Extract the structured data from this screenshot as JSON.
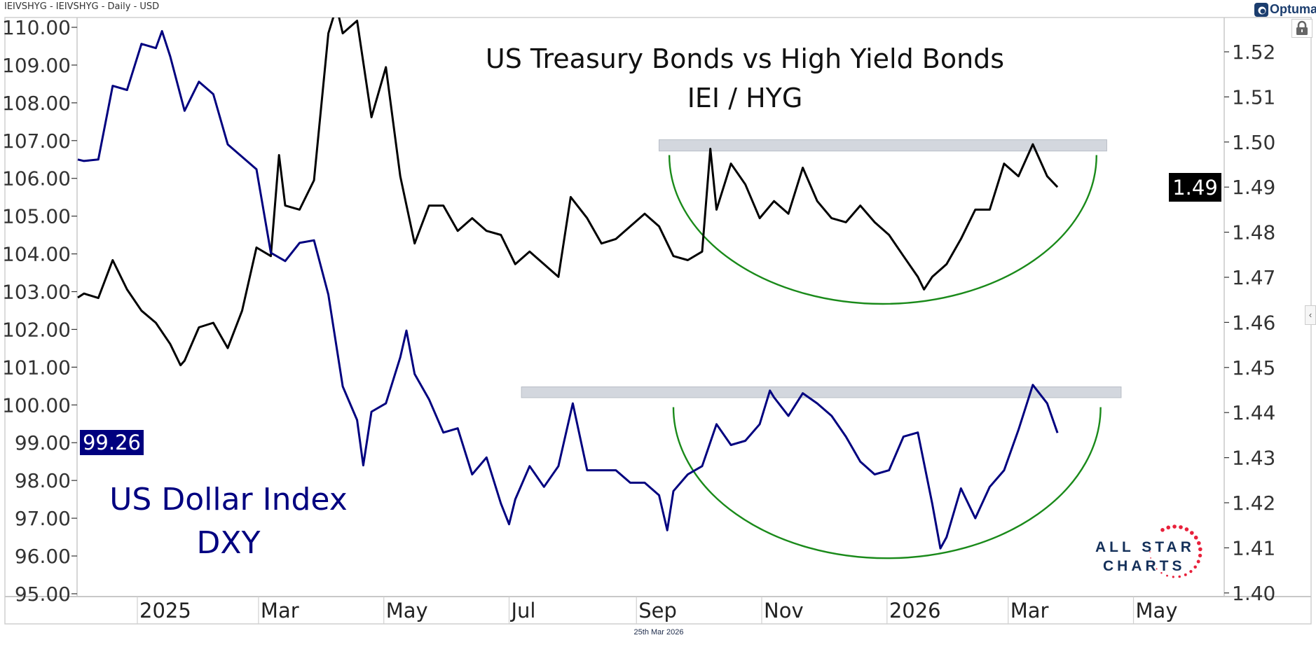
{
  "header": {
    "symbol_line": "IEIVSHYG - IEIVSHYG - Daily - USD",
    "date_label": "25th Mar 2026"
  },
  "branding": {
    "platform": "Optuma",
    "watermark_line1": "ALL STAR",
    "watermark_line2": "CHARTS"
  },
  "colors": {
    "ratio_line": "#000000",
    "dxy_line": "#00007f",
    "arc": "#1a8a1a",
    "band": "#d3d7de",
    "watermark_text": "#14305a",
    "watermark_stars": "#e8213b"
  },
  "icons": {
    "lock": "lock-icon",
    "collapse": "chevron-left-icon",
    "logo": "optuma-logo-icon"
  },
  "chart_data": {
    "type": "line",
    "title": "US Treasury Bonds vs High Yield Bonds",
    "subtitle": "IEI / HYG",
    "annotation_left": {
      "line1": "US Dollar Index",
      "line2": "DXY"
    },
    "grid": false,
    "x_ticks": [
      {
        "label": "2025",
        "date": "2025-01-01"
      },
      {
        "label": "Mar",
        "date": "2025-03-01"
      },
      {
        "label": "May",
        "date": "2025-05-01"
      },
      {
        "label": "Jul",
        "date": "2025-07-01"
      },
      {
        "label": "Sep",
        "date": "2025-09-01"
      },
      {
        "label": "Nov",
        "date": "2025-11-01"
      },
      {
        "label": "2026",
        "date": "2026-01-01"
      },
      {
        "label": "Mar",
        "date": "2026-03-01"
      },
      {
        "label": "May",
        "date": "2026-05-01"
      }
    ],
    "left_axis": {
      "ylim": [
        95,
        110.3
      ],
      "ticks": [
        "95.00",
        "96.00",
        "97.00",
        "98.00",
        "99.00",
        "100.00",
        "101.00",
        "102.00",
        "103.00",
        "104.00",
        "105.00",
        "106.00",
        "107.00",
        "108.00",
        "109.00",
        "110.00"
      ]
    },
    "right_axis": {
      "ylim": [
        1.4,
        1.5275
      ],
      "ticks": [
        "1.40",
        "1.41",
        "1.42",
        "1.43",
        "1.44",
        "1.45",
        "1.46",
        "1.47",
        "1.48",
        "1.49",
        "1.50",
        "1.51",
        "1.52"
      ]
    },
    "series": [
      {
        "axis": "right",
        "last_label": "1.49",
        "points": [
          [
            "2024-12-03",
            1.4655
          ],
          [
            "2024-12-06",
            1.4664
          ],
          [
            "2024-12-13",
            1.4654
          ],
          [
            "2024-12-20",
            1.4738
          ],
          [
            "2024-12-27",
            1.4673
          ],
          [
            "2025-01-03",
            1.4626
          ],
          [
            "2025-01-10",
            1.4599
          ],
          [
            "2025-01-17",
            1.4552
          ],
          [
            "2025-01-22",
            1.4505
          ],
          [
            "2025-01-24",
            1.4515
          ],
          [
            "2025-01-31",
            1.4589
          ],
          [
            "2025-02-07",
            1.4599
          ],
          [
            "2025-02-14",
            1.4543
          ],
          [
            "2025-02-21",
            1.4626
          ],
          [
            "2025-02-28",
            1.4766
          ],
          [
            "2025-03-07",
            1.4747
          ],
          [
            "2025-03-11",
            1.4971
          ],
          [
            "2025-03-14",
            1.4859
          ],
          [
            "2025-03-21",
            1.485
          ],
          [
            "2025-03-28",
            1.4915
          ],
          [
            "2025-04-04",
            1.5241
          ],
          [
            "2025-04-08",
            1.53
          ],
          [
            "2025-04-11",
            1.5241
          ],
          [
            "2025-04-18",
            1.5269
          ],
          [
            "2025-04-25",
            1.5055
          ],
          [
            "2025-05-02",
            1.5166
          ],
          [
            "2025-05-09",
            1.4924
          ],
          [
            "2025-05-16",
            1.4775
          ],
          [
            "2025-05-23",
            1.4859
          ],
          [
            "2025-05-30",
            1.4859
          ],
          [
            "2025-06-06",
            1.4803
          ],
          [
            "2025-06-13",
            1.4831
          ],
          [
            "2025-06-20",
            1.4803
          ],
          [
            "2025-06-27",
            1.4794
          ],
          [
            "2025-07-04",
            1.4729
          ],
          [
            "2025-07-11",
            1.4757
          ],
          [
            "2025-07-18",
            1.4729
          ],
          [
            "2025-07-25",
            1.4701
          ],
          [
            "2025-07-31",
            1.4878
          ],
          [
            "2025-08-08",
            1.4831
          ],
          [
            "2025-08-15",
            1.4775
          ],
          [
            "2025-08-22",
            1.4785
          ],
          [
            "2025-08-29",
            1.4813
          ],
          [
            "2025-09-05",
            1.4841
          ],
          [
            "2025-09-12",
            1.4813
          ],
          [
            "2025-09-19",
            1.4747
          ],
          [
            "2025-09-26",
            1.4738
          ],
          [
            "2025-10-03",
            1.4757
          ],
          [
            "2025-10-07",
            1.4985
          ],
          [
            "2025-10-10",
            1.485
          ],
          [
            "2025-10-17",
            1.4952
          ],
          [
            "2025-10-24",
            1.4906
          ],
          [
            "2025-10-31",
            1.4831
          ],
          [
            "2025-11-07",
            1.4869
          ],
          [
            "2025-11-14",
            1.4841
          ],
          [
            "2025-11-21",
            1.4943
          ],
          [
            "2025-11-28",
            1.4869
          ],
          [
            "2025-12-05",
            1.4831
          ],
          [
            "2025-12-12",
            1.4822
          ],
          [
            "2025-12-19",
            1.4859
          ],
          [
            "2025-12-26",
            1.4822
          ],
          [
            "2026-01-02",
            1.4794
          ],
          [
            "2026-01-09",
            1.4747
          ],
          [
            "2026-01-16",
            1.4701
          ],
          [
            "2026-01-19",
            1.4673
          ],
          [
            "2026-01-23",
            1.4701
          ],
          [
            "2026-01-30",
            1.4729
          ],
          [
            "2026-02-06",
            1.4785
          ],
          [
            "2026-02-13",
            1.485
          ],
          [
            "2026-02-20",
            1.485
          ],
          [
            "2026-02-27",
            1.4952
          ],
          [
            "2026-03-06",
            1.4924
          ],
          [
            "2026-03-13",
            1.4995
          ],
          [
            "2026-03-20",
            1.4924
          ],
          [
            "2026-03-25",
            1.49
          ]
        ]
      },
      {
        "axis": "left",
        "last_label": "99.26",
        "points": [
          [
            "2024-12-03",
            106.5
          ],
          [
            "2024-12-06",
            106.46
          ],
          [
            "2024-12-13",
            106.5
          ],
          [
            "2024-12-20",
            108.45
          ],
          [
            "2024-12-27",
            108.34
          ],
          [
            "2025-01-03",
            109.56
          ],
          [
            "2025-01-10",
            109.45
          ],
          [
            "2025-01-13",
            109.9
          ],
          [
            "2025-01-17",
            109.23
          ],
          [
            "2025-01-24",
            107.79
          ],
          [
            "2025-01-31",
            108.56
          ],
          [
            "2025-02-07",
            108.23
          ],
          [
            "2025-02-14",
            106.9
          ],
          [
            "2025-02-21",
            106.57
          ],
          [
            "2025-02-28",
            106.24
          ],
          [
            "2025-03-07",
            104.03
          ],
          [
            "2025-03-14",
            103.81
          ],
          [
            "2025-03-21",
            104.29
          ],
          [
            "2025-03-28",
            104.36
          ],
          [
            "2025-04-04",
            102.92
          ],
          [
            "2025-04-11",
            100.49
          ],
          [
            "2025-04-18",
            99.6
          ],
          [
            "2025-04-21",
            98.4
          ],
          [
            "2025-04-25",
            99.82
          ],
          [
            "2025-05-02",
            100.04
          ],
          [
            "2025-05-09",
            101.26
          ],
          [
            "2025-05-12",
            101.97
          ],
          [
            "2025-05-16",
            100.82
          ],
          [
            "2025-05-23",
            100.15
          ],
          [
            "2025-05-30",
            99.27
          ],
          [
            "2025-06-06",
            99.38
          ],
          [
            "2025-06-13",
            98.16
          ],
          [
            "2025-06-20",
            98.61
          ],
          [
            "2025-06-27",
            97.39
          ],
          [
            "2025-07-01",
            96.84
          ],
          [
            "2025-07-04",
            97.5
          ],
          [
            "2025-07-11",
            98.38
          ],
          [
            "2025-07-18",
            97.83
          ],
          [
            "2025-07-25",
            98.38
          ],
          [
            "2025-08-01",
            100.04
          ],
          [
            "2025-08-08",
            98.27
          ],
          [
            "2025-08-15",
            98.27
          ],
          [
            "2025-08-22",
            98.27
          ],
          [
            "2025-08-29",
            97.94
          ],
          [
            "2025-09-05",
            97.94
          ],
          [
            "2025-09-12",
            97.61
          ],
          [
            "2025-09-16",
            96.68
          ],
          [
            "2025-09-19",
            97.72
          ],
          [
            "2025-09-26",
            98.16
          ],
          [
            "2025-10-03",
            98.38
          ],
          [
            "2025-10-10",
            99.49
          ],
          [
            "2025-10-17",
            98.94
          ],
          [
            "2025-10-24",
            99.05
          ],
          [
            "2025-10-31",
            99.49
          ],
          [
            "2025-11-05",
            100.38
          ],
          [
            "2025-11-07",
            100.2
          ],
          [
            "2025-11-14",
            99.71
          ],
          [
            "2025-11-21",
            100.31
          ],
          [
            "2025-11-28",
            100.04
          ],
          [
            "2025-12-05",
            99.71
          ],
          [
            "2025-12-12",
            99.16
          ],
          [
            "2025-12-19",
            98.5
          ],
          [
            "2025-12-26",
            98.16
          ],
          [
            "2026-01-02",
            98.27
          ],
          [
            "2026-01-09",
            99.16
          ],
          [
            "2026-01-16",
            99.27
          ],
          [
            "2026-01-23",
            97.39
          ],
          [
            "2026-01-27",
            96.2
          ],
          [
            "2026-01-30",
            96.5
          ],
          [
            "2026-02-06",
            97.79
          ],
          [
            "2026-02-13",
            97.0
          ],
          [
            "2026-02-20",
            97.83
          ],
          [
            "2026-02-27",
            98.27
          ],
          [
            "2026-03-06",
            99.34
          ],
          [
            "2026-03-13",
            100.53
          ],
          [
            "2026-03-20",
            100.04
          ],
          [
            "2026-03-25",
            99.26
          ]
        ]
      }
    ],
    "annotations": {
      "bands": [
        {
          "axis": "right",
          "from": "2025-09-12",
          "to": "2026-04-18",
          "low": 1.498,
          "high": 1.5005
        },
        {
          "axis": "right",
          "from": "2025-07-07",
          "to": "2026-04-25",
          "low": 1.4433,
          "high": 1.4457
        }
      ],
      "arcs": [
        {
          "axis": "right",
          "from": "2025-09-17",
          "to": "2026-04-13",
          "rim": 1.4971,
          "bottom": 1.4641
        },
        {
          "axis": "right",
          "from": "2025-09-19",
          "to": "2026-04-15",
          "rim": 1.4412,
          "bottom": 1.4077
        }
      ]
    }
  }
}
